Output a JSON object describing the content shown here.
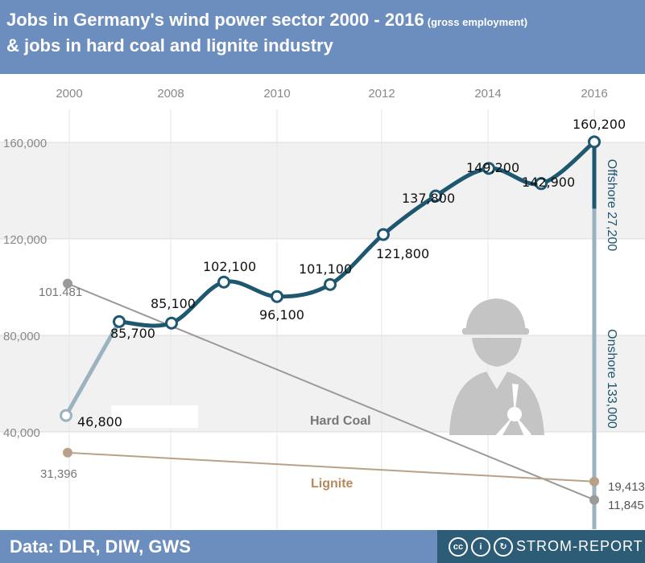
{
  "header": {
    "title_main": "Jobs in Germany's wind power sector 2000 - 2016",
    "title_note": "(gross employment)",
    "title_line2": "& jobs in hard coal and lignite industry"
  },
  "footer": {
    "source": "Data: DLR, DIW, GWS",
    "brand": "STROM-REPORT",
    "license_icons": [
      "cc-icon",
      "by-icon",
      "sa-icon"
    ]
  },
  "colors": {
    "header_bg": "#6c8ebf",
    "wind": "#1e5870",
    "wind_early": "#9bb3c1",
    "hard_coal": "#9a9a9a",
    "lignite": "#b8a188",
    "brand_bg": "#2d5c76"
  },
  "chart_data": {
    "type": "line",
    "x_ticks": [
      "2000",
      "2008",
      "2010",
      "2012",
      "2014",
      "2016"
    ],
    "y_ticks": [
      "160,000",
      "120,000",
      "80,000",
      "40,000"
    ],
    "ylim": [
      0,
      180000
    ],
    "series": [
      {
        "key": "wind",
        "points": [
          {
            "x": 2000,
            "y": 46800,
            "label": "46,800"
          },
          {
            "x": 2001,
            "y": 85700,
            "label": "85,700"
          },
          {
            "x": 2008,
            "y": 85100,
            "label": "85,100"
          },
          {
            "x": 2009,
            "y": 102100,
            "label": "102,100"
          },
          {
            "x": 2010,
            "y": 96100,
            "label": "96,100"
          },
          {
            "x": 2011,
            "y": 101100,
            "label": "101,100"
          },
          {
            "x": 2012,
            "y": 121800,
            "label": "121,800"
          },
          {
            "x": 2013,
            "y": 137800,
            "label": "137,800"
          },
          {
            "x": 2014,
            "y": 149200,
            "label": "149,200"
          },
          {
            "x": 2015,
            "y": 142900,
            "label": "142,900"
          },
          {
            "x": 2016,
            "y": 160200,
            "label": "160,200"
          }
        ]
      },
      {
        "key": "hard_coal",
        "name": "Hard Coal",
        "points": [
          {
            "x": 2000,
            "y": 101481,
            "label": "101.481"
          },
          {
            "x": 2016,
            "y": 11845,
            "label": "11,845"
          }
        ]
      },
      {
        "key": "lignite",
        "name": "Lignite",
        "points": [
          {
            "x": 2000,
            "y": 31396,
            "label": "31,396"
          },
          {
            "x": 2016,
            "y": 19413,
            "label": "19,413"
          }
        ]
      }
    ],
    "breakdown_2016": [
      {
        "name": "Offshore",
        "value": 27200,
        "label": "Offshore 27,200"
      },
      {
        "name": "Onshore",
        "value": 133000,
        "label": "Onshore 133,000"
      }
    ]
  }
}
